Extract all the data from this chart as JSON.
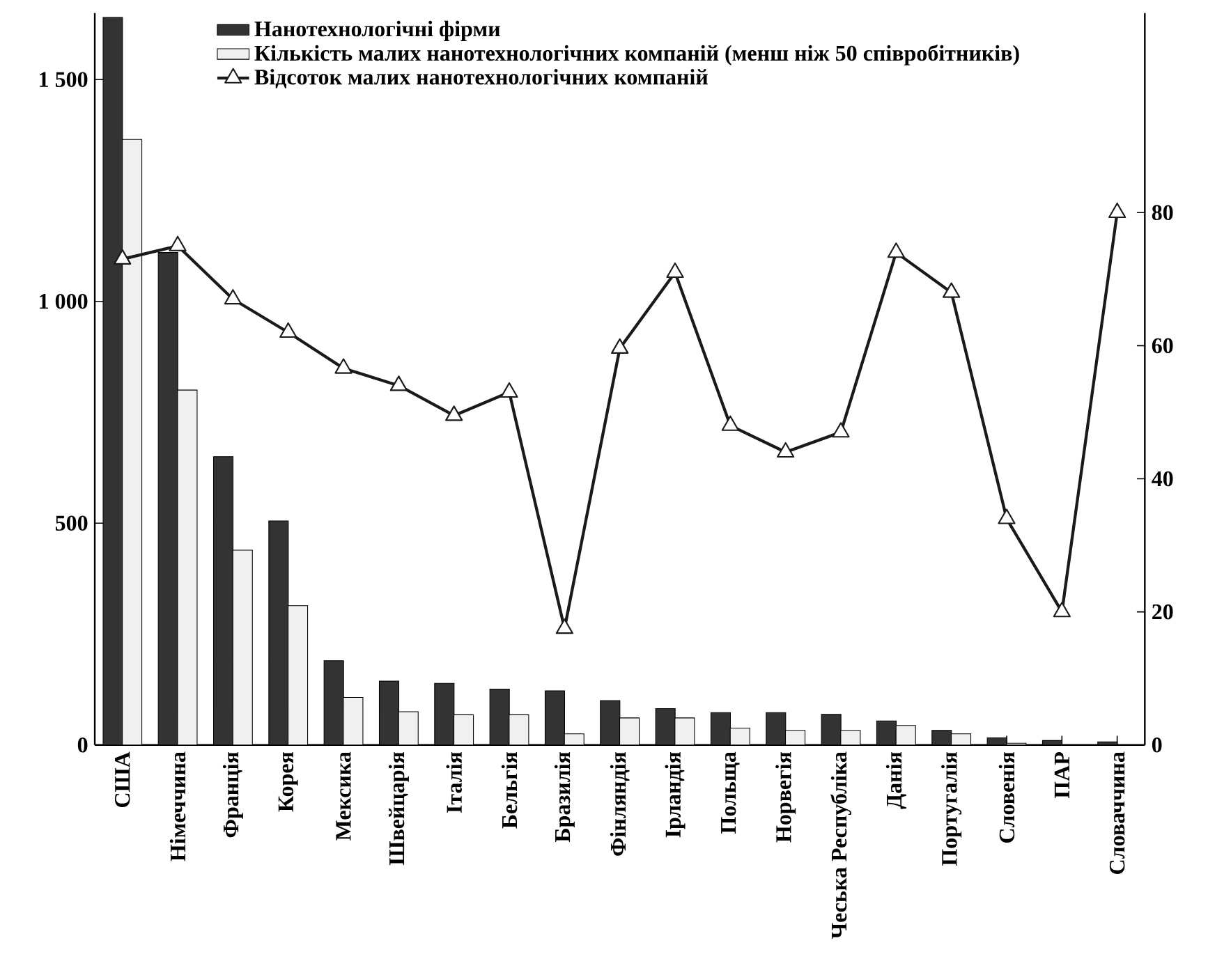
{
  "chart_data": {
    "type": "bar",
    "categories": [
      "США",
      "Німеччина",
      "Франція",
      "Корея",
      "Мексика",
      "Швейцарія",
      "Італія",
      "Бельгія",
      "Бразилія",
      "Фінляндія",
      "Ірландія",
      "Польща",
      "Норвегія",
      "Чеська Республіка",
      "Данія",
      "Португалія",
      "Словенія",
      "ПАР",
      "Словаччина"
    ],
    "series": [
      {
        "name": "Нанотехнологічні фірми",
        "color": "#333333",
        "values": [
          1640,
          1110,
          650,
          505,
          190,
          144,
          139,
          126,
          122,
          100,
          82,
          73,
          73,
          69,
          54,
          33,
          16,
          10,
          7
        ]
      },
      {
        "name": "Кількість малих нанотехнологічних компаній (менш ніж 50 співробітників)",
        "color": "#f0f0f0",
        "values": [
          1365,
          800,
          439,
          314,
          107,
          75,
          68,
          68,
          25,
          61,
          61,
          38,
          33,
          33,
          44,
          25,
          4,
          null,
          null
        ]
      },
      {
        "name": "Відсоток малих нанотехнологічних компаній",
        "color": "#1a1a1a",
        "type": "line",
        "axis": "y2",
        "marker": "triangle",
        "line_style": "solid",
        "values": [
          73,
          75,
          67,
          62,
          56.6,
          54,
          49.5,
          53,
          17.5,
          59.6,
          71,
          48,
          44,
          47,
          74,
          68,
          34,
          20,
          80
        ]
      }
    ],
    "ylim": [
      0,
      1650
    ],
    "yticks": [
      0,
      500,
      {
        "value": 1000,
        "label": "1 000"
      },
      {
        "value": 1500,
        "label": "1 500"
      }
    ],
    "y2lim": [
      0,
      110
    ],
    "y2ticks": [
      0,
      20,
      40,
      60,
      80
    ],
    "legend": "top"
  }
}
